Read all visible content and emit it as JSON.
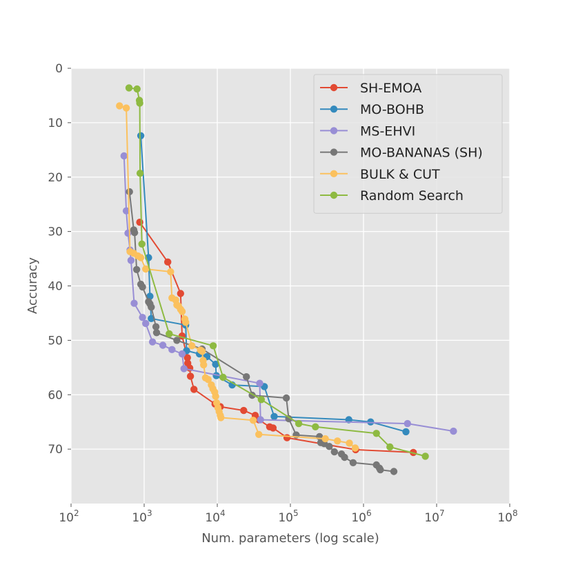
{
  "chart_data": {
    "type": "line",
    "title": "",
    "xlabel": "Num. parameters (log scale)",
    "ylabel": "Accuracy",
    "xscale": "log",
    "xlim": [
      100,
      100000000
    ],
    "ylim": [
      80,
      0
    ],
    "y_inverted": true,
    "grid": true,
    "legend": "top-right",
    "x_ticks": [
      {
        "value": 100,
        "base": "10",
        "exp": "2"
      },
      {
        "value": 1000,
        "base": "10",
        "exp": "3"
      },
      {
        "value": 10000,
        "base": "10",
        "exp": "4"
      },
      {
        "value": 100000,
        "base": "10",
        "exp": "5"
      },
      {
        "value": 1000000,
        "base": "10",
        "exp": "6"
      },
      {
        "value": 10000000,
        "base": "10",
        "exp": "7"
      },
      {
        "value": 100000000,
        "base": "10",
        "exp": "8"
      }
    ],
    "y_ticks": [
      "0",
      "10",
      "20",
      "30",
      "40",
      "50",
      "60",
      "70"
    ],
    "series": [
      {
        "name": "SH-EMOA",
        "color": "#E24A33",
        "points": [
          [
            870,
            28.3
          ],
          [
            2100,
            35.6
          ],
          [
            3150,
            41.4
          ],
          [
            3300,
            49.2
          ],
          [
            3900,
            53.2
          ],
          [
            3950,
            54.2
          ],
          [
            4200,
            55.1
          ],
          [
            4300,
            56.6
          ],
          [
            4800,
            59.0
          ],
          [
            9300,
            61.7
          ],
          [
            11000,
            62.2
          ],
          [
            23000,
            62.9
          ],
          [
            33000,
            63.8
          ],
          [
            37000,
            64.6
          ],
          [
            52000,
            65.9
          ],
          [
            58000,
            66.1
          ],
          [
            90000,
            67.9
          ],
          [
            780000,
            70.1
          ],
          [
            4800000,
            70.6
          ]
        ]
      },
      {
        "name": "MO-BOHB",
        "color": "#348ABD",
        "points": [
          [
            900,
            12.4
          ],
          [
            1150,
            34.8
          ],
          [
            1200,
            41.9
          ],
          [
            1250,
            46.0
          ],
          [
            3700,
            47.2
          ],
          [
            3800,
            51.9
          ],
          [
            5700,
            52.5
          ],
          [
            7200,
            53.0
          ],
          [
            9500,
            54.4
          ],
          [
            9700,
            56.5
          ],
          [
            16000,
            58.2
          ],
          [
            44000,
            58.5
          ],
          [
            60000,
            64.0
          ],
          [
            630000,
            64.6
          ],
          [
            1250000,
            65.0
          ],
          [
            3800000,
            66.8
          ]
        ]
      },
      {
        "name": "MS-EHVI",
        "color": "#988ED5",
        "points": [
          [
            530,
            16.1
          ],
          [
            570,
            26.2
          ],
          [
            600,
            30.3
          ],
          [
            640,
            33.4
          ],
          [
            660,
            35.3
          ],
          [
            730,
            43.2
          ],
          [
            950,
            45.8
          ],
          [
            1050,
            46.9
          ],
          [
            1300,
            50.3
          ],
          [
            1800,
            50.9
          ],
          [
            2400,
            51.7
          ],
          [
            3300,
            52.5
          ],
          [
            3500,
            55.2
          ],
          [
            38000,
            57.9
          ],
          [
            39000,
            64.6
          ],
          [
            4000000,
            65.3
          ],
          [
            17000000,
            66.7
          ]
        ]
      },
      {
        "name": "MO-BANANAS (SH)",
        "color": "#777777",
        "points": [
          [
            630,
            22.7
          ],
          [
            720,
            29.7
          ],
          [
            740,
            30.2
          ],
          [
            790,
            37.0
          ],
          [
            900,
            39.7
          ],
          [
            950,
            40.2
          ],
          [
            1150,
            42.9
          ],
          [
            1200,
            43.3
          ],
          [
            1250,
            43.9
          ],
          [
            1450,
            47.5
          ],
          [
            1480,
            48.6
          ],
          [
            2800,
            50.0
          ],
          [
            6200,
            51.6
          ],
          [
            25000,
            56.7
          ],
          [
            30000,
            60.1
          ],
          [
            88000,
            60.6
          ],
          [
            95000,
            64.4
          ],
          [
            120000,
            67.4
          ],
          [
            250000,
            67.7
          ],
          [
            260000,
            68.8
          ],
          [
            290000,
            69.0
          ],
          [
            340000,
            69.5
          ],
          [
            400000,
            70.5
          ],
          [
            500000,
            70.9
          ],
          [
            550000,
            71.5
          ],
          [
            720000,
            72.5
          ],
          [
            1500000,
            72.9
          ],
          [
            1650000,
            73.5
          ],
          [
            1700000,
            73.8
          ],
          [
            2600000,
            74.1
          ]
        ]
      },
      {
        "name": "BULK & CUT",
        "color": "#FBC15E",
        "points": [
          [
            460,
            6.9
          ],
          [
            570,
            7.3
          ],
          [
            640,
            33.7
          ],
          [
            720,
            34.0
          ],
          [
            820,
            34.5
          ],
          [
            900,
            34.8
          ],
          [
            1050,
            36.9
          ],
          [
            2300,
            37.4
          ],
          [
            2400,
            42.2
          ],
          [
            2700,
            42.6
          ],
          [
            2800,
            43.5
          ],
          [
            2950,
            43.7
          ],
          [
            3150,
            44.3
          ],
          [
            3300,
            44.7
          ],
          [
            3600,
            46.1
          ],
          [
            3700,
            46.7
          ],
          [
            4500,
            51.0
          ],
          [
            5900,
            51.8
          ],
          [
            6200,
            52.0
          ],
          [
            6400,
            53.7
          ],
          [
            6500,
            54.5
          ],
          [
            6900,
            56.9
          ],
          [
            7500,
            57.2
          ],
          [
            8300,
            58.2
          ],
          [
            8700,
            58.9
          ],
          [
            9200,
            59.5
          ],
          [
            9500,
            60.3
          ],
          [
            9800,
            61.5
          ],
          [
            10200,
            62.4
          ],
          [
            10600,
            63.1
          ],
          [
            11000,
            63.8
          ],
          [
            11200,
            64.2
          ],
          [
            31000,
            64.7
          ],
          [
            37000,
            67.3
          ],
          [
            300000,
            68.1
          ],
          [
            440000,
            68.5
          ],
          [
            640000,
            68.9
          ],
          [
            770000,
            69.8
          ]
        ]
      },
      {
        "name": "Random Search",
        "color": "#8EBA42",
        "points": [
          [
            620,
            3.6
          ],
          [
            800,
            3.8
          ],
          [
            860,
            5.9
          ],
          [
            870,
            6.4
          ],
          [
            880,
            19.3
          ],
          [
            930,
            32.3
          ],
          [
            2200,
            48.8
          ],
          [
            8800,
            51.0
          ],
          [
            12000,
            56.8
          ],
          [
            40000,
            60.9
          ],
          [
            130000,
            65.3
          ],
          [
            220000,
            65.9
          ],
          [
            1500000,
            67.1
          ],
          [
            2300000,
            69.6
          ],
          [
            7000000,
            71.3
          ]
        ]
      }
    ]
  }
}
